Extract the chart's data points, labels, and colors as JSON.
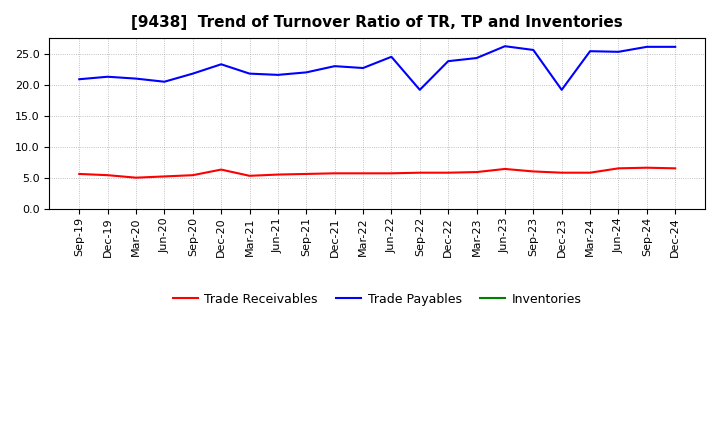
{
  "title": "[9438]  Trend of Turnover Ratio of TR, TP and Inventories",
  "x_labels": [
    "Sep-19",
    "Dec-19",
    "Mar-20",
    "Jun-20",
    "Sep-20",
    "Dec-20",
    "Mar-21",
    "Jun-21",
    "Sep-21",
    "Dec-21",
    "Mar-22",
    "Jun-22",
    "Sep-22",
    "Dec-22",
    "Mar-23",
    "Jun-23",
    "Sep-23",
    "Dec-23",
    "Mar-24",
    "Jun-24",
    "Sep-24",
    "Dec-24"
  ],
  "trade_receivables": [
    5.7,
    5.5,
    5.1,
    5.3,
    5.5,
    6.4,
    5.4,
    5.6,
    5.7,
    5.8,
    5.8,
    5.8,
    5.9,
    5.9,
    6.0,
    6.5,
    6.1,
    5.9,
    5.9,
    6.6,
    6.7,
    6.6
  ],
  "trade_payables": [
    20.9,
    21.3,
    21.0,
    20.5,
    21.8,
    23.3,
    21.8,
    21.6,
    22.0,
    23.0,
    22.7,
    24.5,
    19.2,
    23.8,
    24.3,
    26.2,
    25.6,
    19.2,
    25.4,
    25.3,
    26.1,
    26.1
  ],
  "inventories": [
    null,
    null,
    null,
    null,
    null,
    null,
    null,
    null,
    null,
    null,
    null,
    null,
    null,
    null,
    null,
    null,
    null,
    null,
    null,
    null,
    null,
    null
  ],
  "ylim": [
    0.0,
    27.5
  ],
  "yticks": [
    0.0,
    5.0,
    10.0,
    15.0,
    20.0,
    25.0
  ],
  "line_color_tr": "#ff0000",
  "line_color_tp": "#0000ff",
  "line_color_inv": "#008000",
  "legend_tr": "Trade Receivables",
  "legend_tp": "Trade Payables",
  "legend_inv": "Inventories",
  "background_color": "#ffffff",
  "grid_color": "#999999",
  "title_fontsize": 11,
  "axis_fontsize": 8,
  "legend_fontsize": 9,
  "line_width": 1.5
}
